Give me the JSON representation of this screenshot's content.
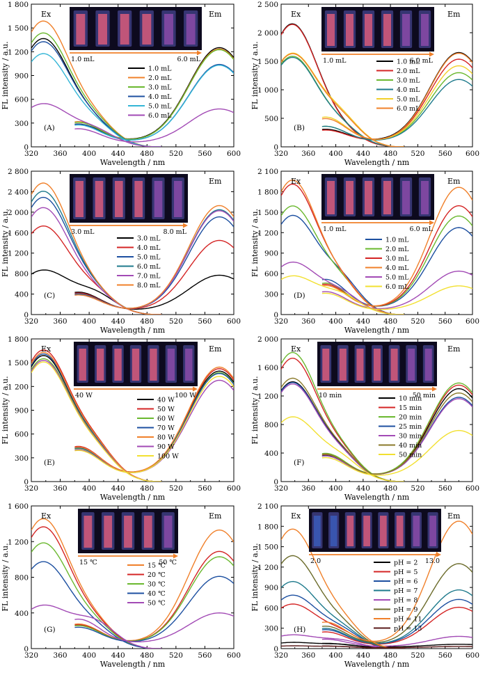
{
  "chart_data": [
    {
      "type": "line",
      "panel_label": "(A)",
      "xlabel": "Wavelength / nm",
      "ylabel": "FL intensity / a.u.",
      "xlim": [
        320,
        600
      ],
      "ylim": [
        0,
        1800
      ],
      "xticks": [
        "320",
        "360",
        "400",
        "440",
        "480",
        "520",
        "560",
        "600"
      ],
      "yticks": [
        "0",
        "300",
        "600",
        "900",
        "1 200",
        "1 500",
        "1 800"
      ],
      "ex_label": "Ex",
      "em_label": "Em",
      "inset": {
        "start": "1.0 mL",
        "end": "6.0 mL",
        "tubes": 6
      },
      "legend_position": "center-right",
      "series": [
        {
          "name": "1.0 mL",
          "color": "#000000",
          "ex_peak": 1360,
          "ex_tail": 240,
          "em_peak": 1300,
          "em_min": 120
        },
        {
          "name": "2.0 mL",
          "color": "#f0802a",
          "ex_peak": 1580,
          "ex_tail": 280,
          "em_peak": 1280,
          "em_min": 110
        },
        {
          "name": "3.0 mL",
          "color": "#6ab82e",
          "ex_peak": 1430,
          "ex_tail": 270,
          "em_peak": 1270,
          "em_min": 110
        },
        {
          "name": "4.0 mL",
          "color": "#1c4fa0",
          "ex_peak": 1320,
          "ex_tail": 250,
          "em_peak": 1080,
          "em_min": 100
        },
        {
          "name": "5.0 mL",
          "color": "#33b5d6",
          "ex_peak": 1170,
          "ex_tail": 240,
          "em_peak": 1070,
          "em_min": 100
        },
        {
          "name": "6.0 mL",
          "color": "#a24ab5",
          "ex_peak": 540,
          "ex_tail": 200,
          "em_peak": 510,
          "em_min": 80
        }
      ]
    },
    {
      "type": "line",
      "panel_label": "(B)",
      "xlabel": "Wavelength / nm",
      "ylabel": "FL intensity / a.u.",
      "xlim": [
        320,
        600
      ],
      "ylim": [
        0,
        2500
      ],
      "xticks": [
        "320",
        "360",
        "400",
        "440",
        "480",
        "520",
        "560",
        "600"
      ],
      "yticks": [
        "0",
        "500",
        "1 000",
        "1 500",
        "2 000",
        "2 500"
      ],
      "ex_label": "Ex",
      "em_label": "Em",
      "inset": {
        "start": "1.0 mL",
        "end": "6.0 mL",
        "tubes": 6
      },
      "legend_position": "center-right",
      "series": [
        {
          "name": "1.0 mL",
          "color": "#000000",
          "ex_peak": 2150,
          "ex_tail": 230,
          "em_peak": 1720,
          "em_min": 170
        },
        {
          "name": "2.0 mL",
          "color": "#d42424",
          "ex_peak": 2140,
          "ex_tail": 220,
          "em_peak": 1600,
          "em_min": 160
        },
        {
          "name": "3.0 mL",
          "color": "#6ab82e",
          "ex_peak": 1580,
          "ex_tail": 300,
          "em_peak": 1360,
          "em_min": 150
        },
        {
          "name": "4.0 mL",
          "color": "#1e7a8c",
          "ex_peak": 1560,
          "ex_tail": 300,
          "em_peak": 1240,
          "em_min": 150
        },
        {
          "name": "5.0 mL",
          "color": "#f2d02a",
          "ex_peak": 1630,
          "ex_tail": 480,
          "em_peak": 1480,
          "em_min": 150
        },
        {
          "name": "6.0 mL",
          "color": "#f0802a",
          "ex_peak": 1620,
          "ex_tail": 450,
          "em_peak": 1700,
          "em_min": 150
        }
      ]
    },
    {
      "type": "line",
      "panel_label": "(C)",
      "xlabel": "Wavelength / nm",
      "ylabel": "FL intensity / a.u.",
      "xlim": [
        320,
        600
      ],
      "ylim": [
        0,
        2800
      ],
      "xticks": [
        "320",
        "360",
        "400",
        "440",
        "480",
        "520",
        "560",
        "600"
      ],
      "yticks": [
        "0",
        "400",
        "800",
        "1 200",
        "1 600",
        "2 000",
        "2 400",
        "2 800"
      ],
      "em_label": "Em",
      "inset": {
        "start": "3.0 mL",
        "end": "8.0 mL",
        "tubes": 6
      },
      "legend_position": "center",
      "series": [
        {
          "name": "3.0 mL",
          "color": "#000000",
          "ex_peak": 860,
          "ex_tail": 400,
          "em_peak": 820,
          "em_min": 130
        },
        {
          "name": "4.0 mL",
          "color": "#d42424",
          "ex_peak": 1720,
          "ex_tail": 380,
          "em_peak": 1500,
          "em_min": 130
        },
        {
          "name": "5.0 mL",
          "color": "#1c4fa0",
          "ex_peak": 2280,
          "ex_tail": 360,
          "em_peak": 1960,
          "em_min": 130
        },
        {
          "name": "6.0 mL",
          "color": "#1e7a8c",
          "ex_peak": 2400,
          "ex_tail": 350,
          "em_peak": 2100,
          "em_min": 130
        },
        {
          "name": "7.0 mL",
          "color": "#a24ab5",
          "ex_peak": 2080,
          "ex_tail": 340,
          "em_peak": 2080,
          "em_min": 130
        },
        {
          "name": "8.0 mL",
          "color": "#f0802a",
          "ex_peak": 2560,
          "ex_tail": 340,
          "em_peak": 2180,
          "em_min": 130
        }
      ]
    },
    {
      "type": "line",
      "panel_label": "(D)",
      "xlabel": "Wavelength / nm",
      "ylabel": "FL intensity / a.u.",
      "xlim": [
        320,
        600
      ],
      "ylim": [
        0,
        2100
      ],
      "xticks": [
        "320",
        "360",
        "400",
        "440",
        "480",
        "520",
        "560",
        "600"
      ],
      "yticks": [
        "0",
        "300",
        "600",
        "900",
        "1 200",
        "1 500",
        "1 800",
        "2 100"
      ],
      "ex_label": "Ex",
      "em_label": "Em",
      "inset": {
        "start": "1.0 mL",
        "end": "6.0 mL",
        "tubes": 6
      },
      "legend_position": "center-right",
      "series": [
        {
          "name": "1.0 mL",
          "color": "#1c4fa0",
          "ex_peak": 1440,
          "ex_tail": 480,
          "em_peak": 1330,
          "em_min": 140
        },
        {
          "name": "2.0 mL",
          "color": "#6ab82e",
          "ex_peak": 1580,
          "ex_tail": 420,
          "em_peak": 1500,
          "em_min": 140
        },
        {
          "name": "3.0 mL",
          "color": "#d42424",
          "ex_peak": 1900,
          "ex_tail": 400,
          "em_peak": 1650,
          "em_min": 140
        },
        {
          "name": "4.0 mL",
          "color": "#f0802a",
          "ex_peak": 1960,
          "ex_tail": 380,
          "em_peak": 1920,
          "em_min": 140
        },
        {
          "name": "5.0 mL",
          "color": "#a24ab5",
          "ex_peak": 760,
          "ex_tail": 300,
          "em_peak": 680,
          "em_min": 110
        },
        {
          "name": "6.0 mL",
          "color": "#f2e030",
          "ex_peak": 560,
          "ex_tail": 280,
          "em_peak": 460,
          "em_min": 100
        }
      ]
    },
    {
      "type": "line",
      "panel_label": "(E)",
      "xlabel": "Wavelength / nm",
      "ylabel": "FL intensity / a.u.",
      "xlim": [
        320,
        600
      ],
      "ylim": [
        0,
        1800
      ],
      "xticks": [
        "320",
        "360",
        "400",
        "440",
        "480",
        "520",
        "560",
        "600"
      ],
      "yticks": [
        "0",
        "300",
        "600",
        "900",
        "1 200",
        "1 500",
        "1 800"
      ],
      "ex_label": "Ex",
      "em_label": "Em",
      "inset": {
        "start": "40 W",
        "end": "100 W",
        "tubes": 7
      },
      "legend_position": "center-right",
      "series": [
        {
          "name": "40 W",
          "color": "#000000",
          "ex_peak": 1580,
          "ex_tail": 380,
          "em_peak": 1450,
          "em_min": 140
        },
        {
          "name": "50 W",
          "color": "#d42424",
          "ex_peak": 1650,
          "ex_tail": 400,
          "em_peak": 1480,
          "em_min": 140
        },
        {
          "name": "60 W",
          "color": "#6ab82e",
          "ex_peak": 1540,
          "ex_tail": 370,
          "em_peak": 1430,
          "em_min": 140
        },
        {
          "name": "70 W",
          "color": "#1c4fa0",
          "ex_peak": 1600,
          "ex_tail": 380,
          "em_peak": 1420,
          "em_min": 140
        },
        {
          "name": "80 W",
          "color": "#f0802a",
          "ex_peak": 1620,
          "ex_tail": 390,
          "em_peak": 1500,
          "em_min": 140
        },
        {
          "name": "90 W",
          "color": "#a24ab5",
          "ex_peak": 1520,
          "ex_tail": 360,
          "em_peak": 1330,
          "em_min": 130
        },
        {
          "name": "100 W",
          "color": "#f2e030",
          "ex_peak": 1500,
          "ex_tail": 350,
          "em_peak": 1380,
          "em_min": 130
        }
      ]
    },
    {
      "type": "line",
      "panel_label": "(F)",
      "xlabel": "Wavelength / nm",
      "ylabel": "FL intensity / a.u.",
      "xlim": [
        320,
        600
      ],
      "ylim": [
        0,
        2000
      ],
      "xticks": [
        "320",
        "360",
        "400",
        "440",
        "480",
        "520",
        "560",
        "600"
      ],
      "yticks": [
        "0",
        "400",
        "800",
        "1 200",
        "1 600",
        "2 000"
      ],
      "ex_label": "Ex",
      "em_label": "Em",
      "inset": {
        "start": "10 min",
        "end": "50 min",
        "tubes": 7
      },
      "legend_position": "center-right",
      "series": [
        {
          "name": "10 min",
          "color": "#000000",
          "ex_peak": 1390,
          "ex_tail": 330,
          "em_peak": 1350,
          "em_min": 120
        },
        {
          "name": "15 min",
          "color": "#d42424",
          "ex_peak": 1720,
          "ex_tail": 350,
          "em_peak": 1400,
          "em_min": 120
        },
        {
          "name": "20 min",
          "color": "#6ab82e",
          "ex_peak": 1800,
          "ex_tail": 360,
          "em_peak": 1430,
          "em_min": 120
        },
        {
          "name": "25 min",
          "color": "#1c4fa0",
          "ex_peak": 1380,
          "ex_tail": 320,
          "em_peak": 1230,
          "em_min": 120
        },
        {
          "name": "30 min",
          "color": "#a24ab5",
          "ex_peak": 1360,
          "ex_tail": 320,
          "em_peak": 1210,
          "em_min": 120
        },
        {
          "name": "40 min",
          "color": "#8a7a2a",
          "ex_peak": 1440,
          "ex_tail": 340,
          "em_peak": 1290,
          "em_min": 120
        },
        {
          "name": "50 min",
          "color": "#f2e030",
          "ex_peak": 900,
          "ex_tail": 300,
          "em_peak": 760,
          "em_min": 110
        }
      ]
    },
    {
      "type": "line",
      "panel_label": "(G)",
      "xlabel": "Wavelength / nm",
      "ylabel": "FL intensity / a.u.",
      "xlim": [
        320,
        600
      ],
      "ylim": [
        0,
        1600
      ],
      "xticks": [
        "320",
        "360",
        "400",
        "440",
        "480",
        "520",
        "560",
        "600"
      ],
      "yticks": [
        "0",
        "400",
        "800",
        "1 200",
        "1 600"
      ],
      "ex_label": "Ex",
      "em_label": "Em",
      "inset": {
        "start": "15 ℃",
        "end": "50 ℃",
        "tubes": 5
      },
      "legend_position": "center-right",
      "series": [
        {
          "name": "15 ℃",
          "color": "#f0802a",
          "ex_peak": 1450,
          "ex_tail": 240,
          "em_peak": 1370,
          "em_min": 100
        },
        {
          "name": "20 ℃",
          "color": "#d42424",
          "ex_peak": 1360,
          "ex_tail": 230,
          "em_peak": 1130,
          "em_min": 100
        },
        {
          "name": "30 ℃",
          "color": "#6ab82e",
          "ex_peak": 1180,
          "ex_tail": 220,
          "em_peak": 1070,
          "em_min": 100
        },
        {
          "name": "40 ℃",
          "color": "#1c4fa0",
          "ex_peak": 970,
          "ex_tail": 200,
          "em_peak": 850,
          "em_min": 100
        },
        {
          "name": "50 ℃",
          "color": "#a24ab5",
          "ex_peak": 480,
          "ex_tail": 300,
          "em_peak": 440,
          "em_min": 100
        }
      ]
    },
    {
      "type": "line",
      "panel_label": "(H)",
      "xlabel": "Wavelength / nm",
      "ylabel": "FL intensity / a.u.",
      "xlim": [
        320,
        600
      ],
      "ylim": [
        0,
        2100
      ],
      "xticks": [
        "320",
        "360",
        "400",
        "440",
        "480",
        "520",
        "560",
        "600"
      ],
      "yticks": [
        "0",
        "300",
        "600",
        "900",
        "1 200",
        "1 500",
        "1 800",
        "2 100"
      ],
      "ex_label": "Ex",
      "em_label": "Em",
      "inset": {
        "start": "2.0",
        "end": "13.0",
        "tubes": 8
      },
      "legend_position": "center-right",
      "series": [
        {
          "name": "pH = 2",
          "color": "#000000",
          "ex_peak": 90,
          "ex_tail": 60,
          "em_peak": 80,
          "em_min": 40
        },
        {
          "name": "pH = 5",
          "color": "#d42424",
          "ex_peak": 650,
          "ex_tail": 220,
          "em_peak": 640,
          "em_min": 80
        },
        {
          "name": "pH = 6",
          "color": "#1c4fa0",
          "ex_peak": 780,
          "ex_tail": 250,
          "em_peak": 760,
          "em_min": 90
        },
        {
          "name": "pH = 7",
          "color": "#1e7a8c",
          "ex_peak": 980,
          "ex_tail": 270,
          "em_peak": 900,
          "em_min": 90
        },
        {
          "name": "pH = 8",
          "color": "#a24ab5",
          "ex_peak": 200,
          "ex_tail": 120,
          "em_peak": 200,
          "em_min": 50
        },
        {
          "name": "pH = 9",
          "color": "#6b6b2a",
          "ex_peak": 1360,
          "ex_tail": 300,
          "em_peak": 1290,
          "em_min": 100
        },
        {
          "name": "pH = 11",
          "color": "#f0802a",
          "ex_peak": 1750,
          "ex_tail": 360,
          "em_peak": 1920,
          "em_min": 110
        },
        {
          "name": "pH = 13",
          "color": "#5a1a1a",
          "ex_peak": 40,
          "ex_tail": 30,
          "em_peak": 40,
          "em_min": 20
        }
      ]
    }
  ]
}
